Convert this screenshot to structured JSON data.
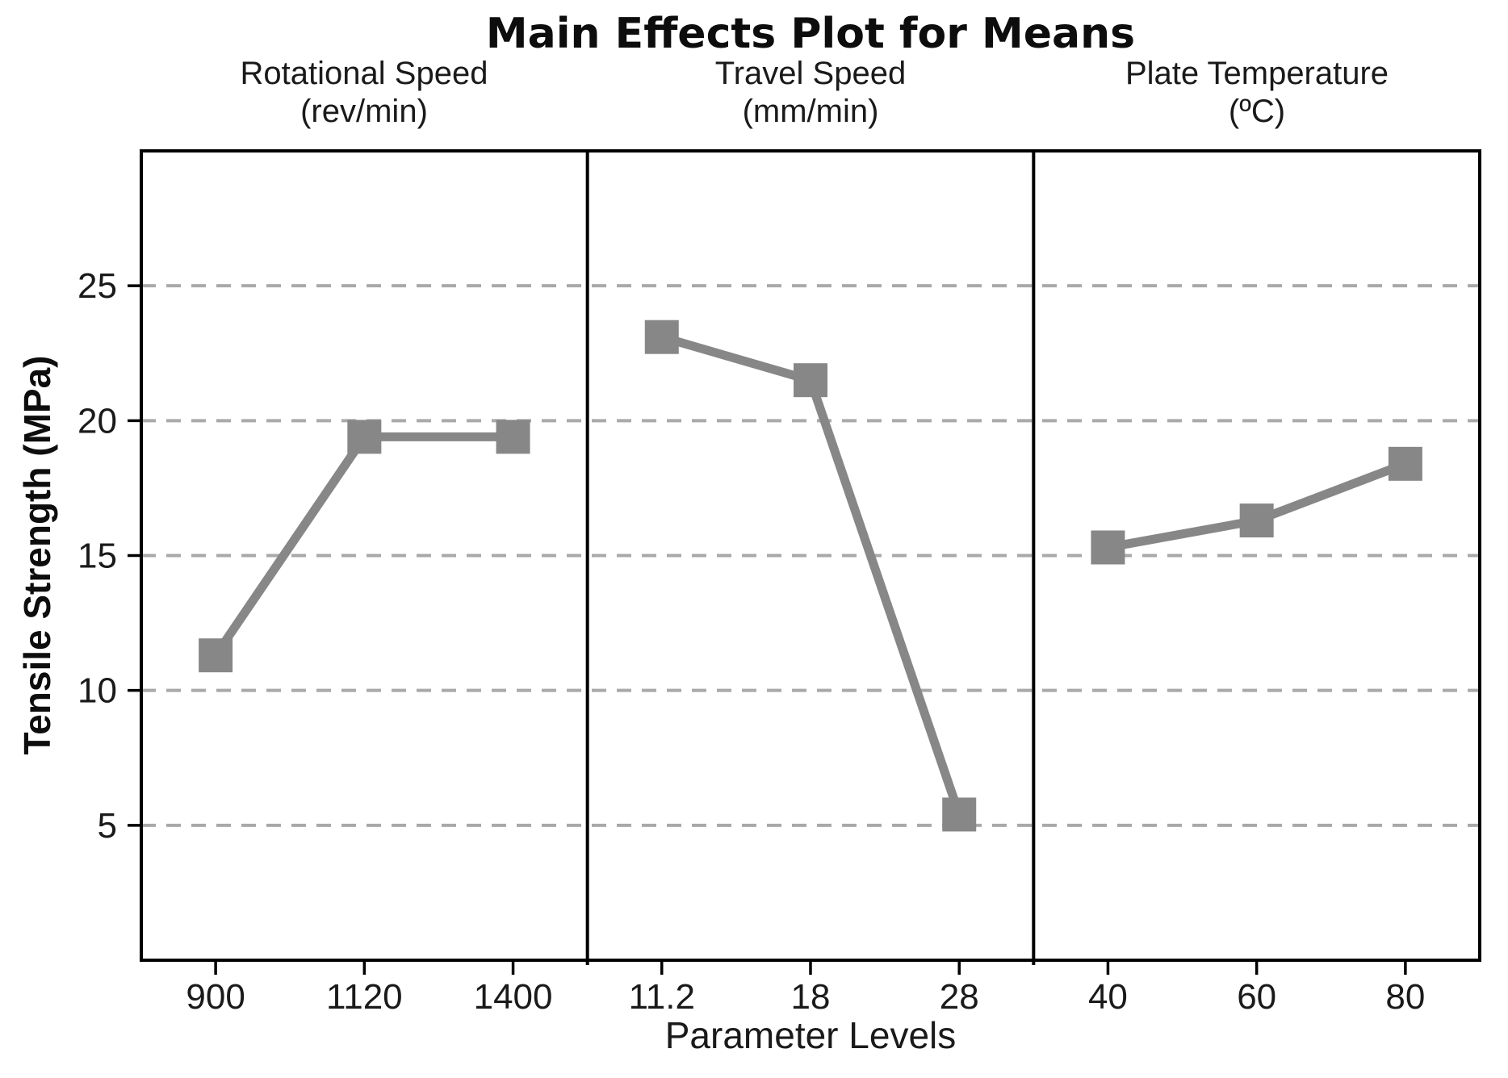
{
  "figure": {
    "background": "#ffffff"
  },
  "chart_data": {
    "type": "line",
    "title": "Main Effects Plot for Means",
    "xlabel": "Parameter Levels",
    "ylabel": "Tensile Strength (MPa)",
    "ylim": [
      0,
      30
    ],
    "yticks": [
      5,
      10,
      15,
      20,
      25
    ],
    "grid": "horizontal-dashed",
    "legend": "none",
    "marker": "square",
    "series_color": "#878787",
    "grid_color": "#a9a9a9",
    "frame_color": "#000000",
    "tick_label_color": "#1a1a1a",
    "panels": [
      {
        "label": "Rotational Speed",
        "unit": "(rev/min)",
        "categories": [
          "900",
          "1120",
          "1400"
        ],
        "values": [
          11.3,
          19.4,
          19.4
        ]
      },
      {
        "label": "Travel Speed",
        "unit": "(mm/min)",
        "categories": [
          "11.2",
          "18",
          "28"
        ],
        "values": [
          23.1,
          21.5,
          5.4
        ]
      },
      {
        "label": "Plate Temperature",
        "unit": "(ºC)",
        "categories": [
          "40",
          "60",
          "80"
        ],
        "values": [
          15.3,
          16.3,
          18.4
        ]
      }
    ]
  }
}
